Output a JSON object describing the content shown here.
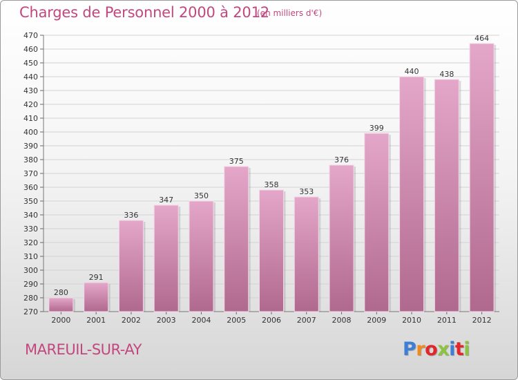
{
  "title": "Charges de Personnel 2000 à 2012",
  "subtitle": "(en milliers d'€)",
  "footer": {
    "location": "MAREUIL-SUR-AY",
    "logo": [
      "P",
      "r",
      "o",
      "x",
      "i",
      "t",
      "i"
    ]
  },
  "colors": {
    "title": "#c2477f",
    "bar_top": "#e4a7c9",
    "bar_bottom": "#b0698e",
    "logo": [
      "#3d7fd6",
      "#f08a1c",
      "#e2262b",
      "#8bc53f",
      "#3d7fd6",
      "#e2262b",
      "#8bc53f"
    ]
  },
  "chart_data": {
    "type": "bar",
    "categories": [
      "2000",
      "2001",
      "2002",
      "2003",
      "2004",
      "2005",
      "2006",
      "2007",
      "2008",
      "2009",
      "2010",
      "2011",
      "2012"
    ],
    "values": [
      280,
      291,
      336,
      347,
      350,
      375,
      358,
      353,
      376,
      399,
      440,
      438,
      464
    ],
    "ylim": [
      270,
      470
    ],
    "yticks": [
      270,
      280,
      290,
      300,
      310,
      320,
      330,
      340,
      350,
      360,
      370,
      380,
      390,
      400,
      410,
      420,
      430,
      440,
      450,
      460,
      470
    ],
    "grid": true,
    "legend": "none"
  }
}
